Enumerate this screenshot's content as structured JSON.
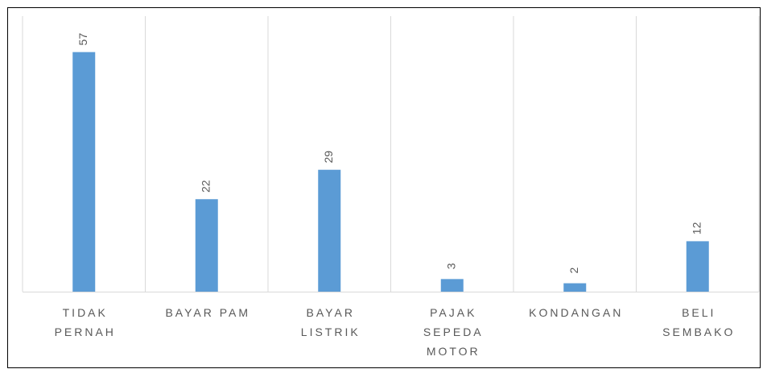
{
  "chart_data": {
    "type": "bar",
    "categories": [
      "TIDAK PERNAH",
      "BAYAR PAM",
      "BAYAR LISTRIK",
      "PAJAK SEPEDA MOTOR",
      "KONDANGAN",
      "BELI SEMBAKO"
    ],
    "values": [
      57,
      22,
      29,
      3,
      2,
      12
    ],
    "color": "#5b9bd5",
    "ylim": [
      0,
      60
    ],
    "grid": true
  }
}
